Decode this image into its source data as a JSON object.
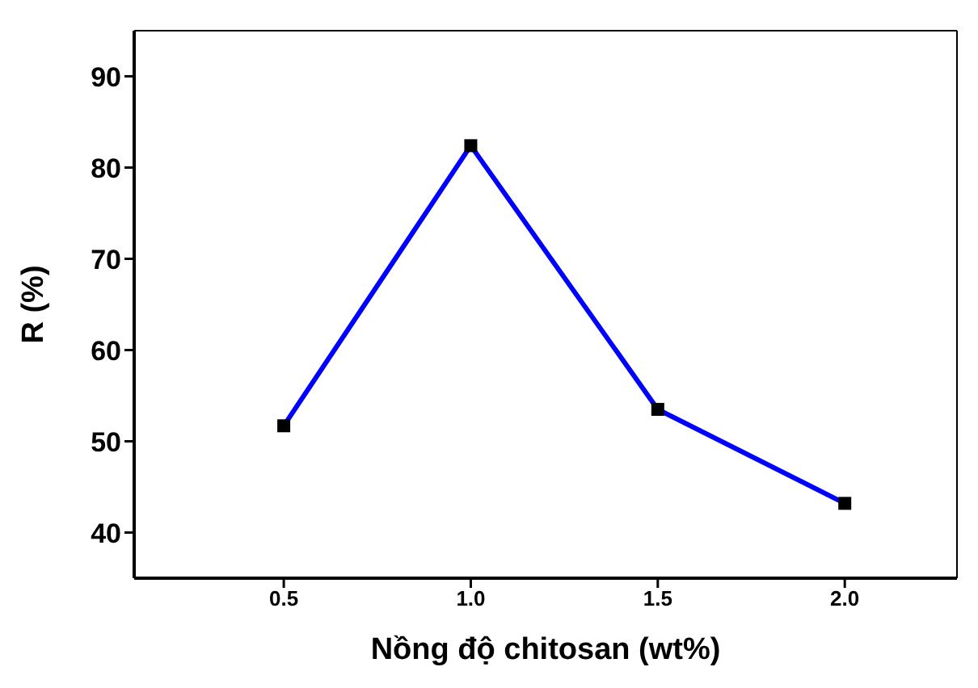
{
  "chart_data": {
    "type": "line",
    "xlabel": "Nồng độ chitosan (wt%)",
    "ylabel": "R (%)",
    "x": [
      0.5,
      1.0,
      1.5,
      2.0
    ],
    "series": [
      {
        "color": "#0000ff",
        "values": [
          51.7,
          82.4,
          53.5,
          43.2
        ]
      }
    ],
    "xlim": [
      0.1,
      2.3
    ],
    "xticks": [
      0.5,
      {
        "value": 1,
        "label": "1.0"
      },
      1.5,
      {
        "value": 2,
        "label": "2.0"
      }
    ],
    "ylim": [
      35,
      95
    ],
    "yticks": [
      40,
      50,
      60,
      70,
      80,
      90
    ],
    "marker": "square",
    "line_style": "solid",
    "grid": false
  }
}
